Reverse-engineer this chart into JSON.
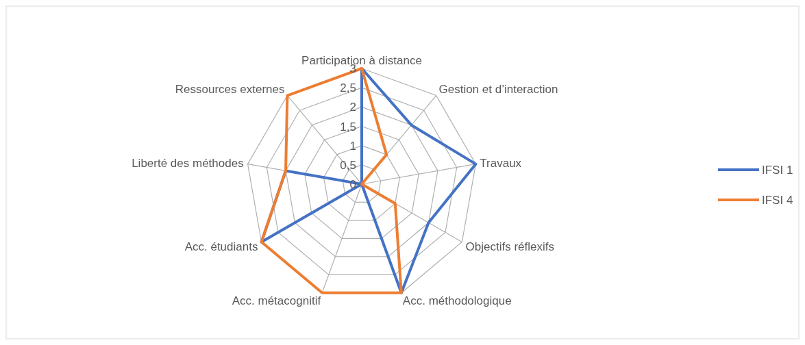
{
  "chart_data": {
    "type": "radar",
    "categories": [
      "Participation à distance",
      "Gestion et d’interaction",
      "Travaux",
      "Objectifs réflexifs",
      "Acc. méthodologique",
      "Acc. métacognitif",
      "Acc. étudiants",
      "Liberté des méthodes",
      "Ressources externes"
    ],
    "series": [
      {
        "name": "IFSI 1",
        "color": "#4472c4",
        "values": [
          3,
          2,
          3,
          2,
          3,
          0,
          3,
          2,
          0
        ]
      },
      {
        "name": "IFSI 4",
        "color": "#ed7d31",
        "values": [
          3,
          1,
          0,
          1,
          3,
          3,
          3,
          2,
          3
        ]
      }
    ],
    "ylim": [
      0,
      3
    ],
    "yticks": [
      0,
      {
        "value": 0.5,
        "label": "0,5"
      },
      1,
      {
        "value": 1.5,
        "label": "1,5"
      },
      2,
      {
        "value": 2.5,
        "label": "2,5"
      },
      3
    ],
    "grid": true,
    "legend": "right"
  }
}
